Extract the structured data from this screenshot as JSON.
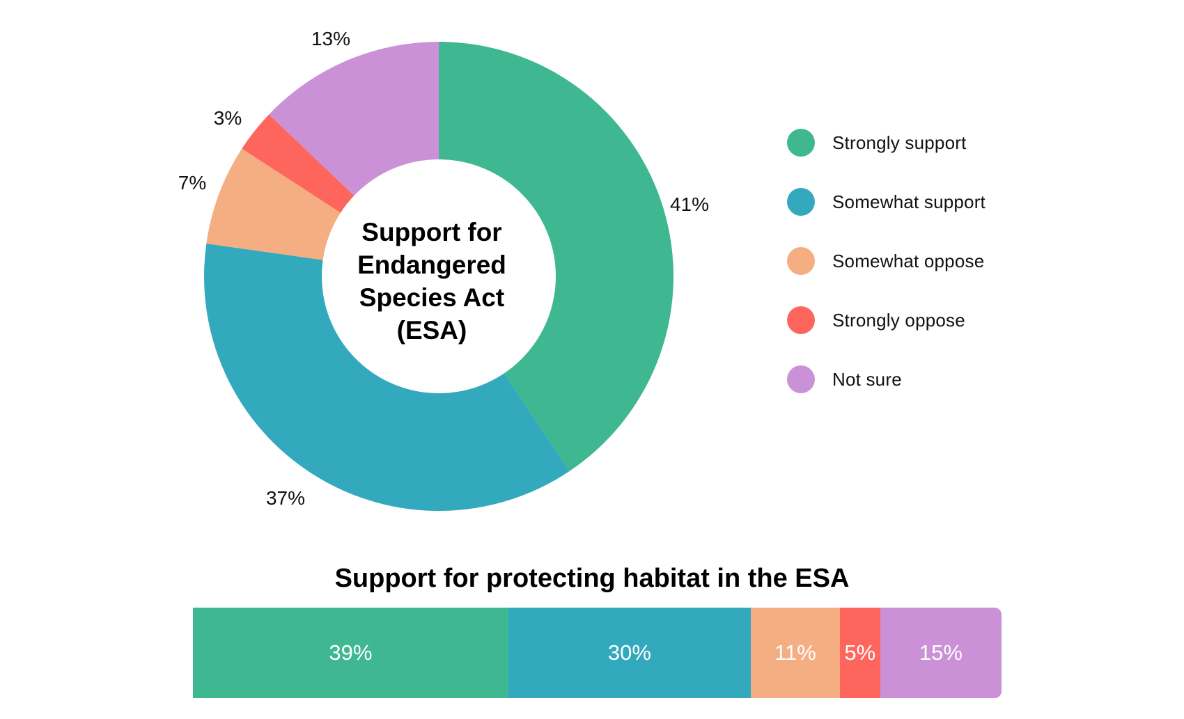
{
  "colors": {
    "strongly_support": "#3fb891",
    "somewhat_support": "#33a9be",
    "somewhat_oppose": "#f5ad82",
    "strongly_oppose": "#fe665d",
    "not_sure": "#cb91d6"
  },
  "legend": [
    {
      "label": "Strongly support",
      "color": "#3fb891"
    },
    {
      "label": "Somewhat support",
      "color": "#33a9be"
    },
    {
      "label": "Somewhat oppose",
      "color": "#f5ad82"
    },
    {
      "label": "Strongly oppose",
      "color": "#fe665d"
    },
    {
      "label": "Not sure",
      "color": "#cb91d6"
    }
  ],
  "chart_data": [
    {
      "type": "pie",
      "style": "donut",
      "title": "Support for Endangered Species Act (ESA)",
      "title_lines": [
        "Support for",
        "Endangered",
        "Species Act",
        "(ESA)"
      ],
      "categories": [
        "Strongly support",
        "Somewhat support",
        "Somewhat oppose",
        "Strongly oppose",
        "Not sure"
      ],
      "values": [
        41,
        37,
        7,
        3,
        13
      ],
      "labels": [
        "41%",
        "37%",
        "7%",
        "3%",
        "13%"
      ],
      "legend_position": "right"
    },
    {
      "type": "bar",
      "orientation": "horizontal-stacked",
      "title": "Support for protecting habitat in the ESA",
      "categories": [
        "Strongly support",
        "Somewhat support",
        "Somewhat oppose",
        "Strongly oppose",
        "Not sure"
      ],
      "values": [
        39,
        30,
        11,
        5,
        15
      ],
      "labels": [
        "39%",
        "30%",
        "11%",
        "5%",
        "15%"
      ]
    }
  ]
}
